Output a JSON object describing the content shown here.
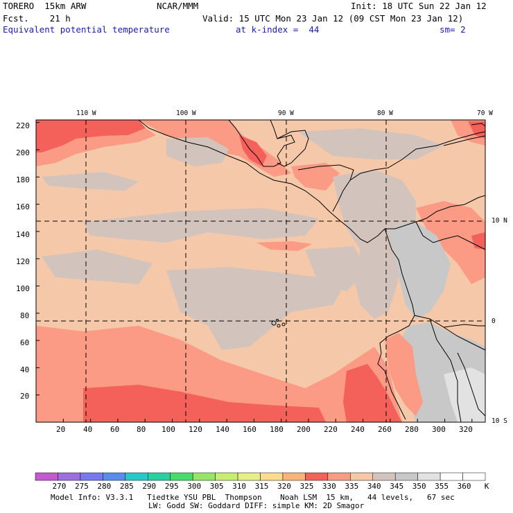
{
  "header": {
    "model_name": "TORERO  15km ARW",
    "center": "NCAR/MMM",
    "init": "Init: 18 UTC Sun 22 Jan 12",
    "fcst": "Fcst.    21 h",
    "valid": "Valid: 15 UTC Mon 23 Jan 12 (09 CST Mon 23 Jan 12)",
    "field": "Equivalent potential temperature",
    "level": "at k-index =  44",
    "smoothing": "sm= 2"
  },
  "map": {
    "top_lon_labels": [
      "110 W",
      "100 W",
      "90 W",
      "80 W",
      "70 W"
    ],
    "right_lat_labels": [
      "10 N",
      "0",
      "10 S"
    ],
    "y_axis_ticks": [
      "20",
      "40",
      "60",
      "80",
      "100",
      "120",
      "140",
      "160",
      "180",
      "200",
      "220"
    ],
    "x_axis_ticks": [
      "20",
      "40",
      "60",
      "80",
      "100",
      "120",
      "140",
      "160",
      "180",
      "200",
      "220",
      "240",
      "260",
      "280",
      "300",
      "320"
    ],
    "colors": {
      "c335": "#fb9a85",
      "c340": "#f4c8a8",
      "c345": "#d2c4bd",
      "c350": "#c8c8c8",
      "c355": "#e2e2e2",
      "c330": "#f4605a"
    }
  },
  "colorbar": {
    "unit": "K",
    "labels": [
      "270",
      "275",
      "280",
      "285",
      "290",
      "295",
      "300",
      "305",
      "310",
      "315",
      "320",
      "325",
      "330",
      "335",
      "340",
      "345",
      "350",
      "355",
      "360"
    ],
    "colors": [
      "#c35ad2",
      "#9b6ee6",
      "#7878f0",
      "#5a8cf0",
      "#28c8c8",
      "#28d2a0",
      "#46dc6e",
      "#96e664",
      "#c8ee6e",
      "#e6f082",
      "#fadc8c",
      "#fab478",
      "#f4605a",
      "#fb9a85",
      "#f4c8a8",
      "#d2c4bd",
      "#c8c8c8",
      "#e2e2e2",
      "#ffffff"
    ]
  },
  "footer": {
    "line1": "Model Info: V3.3.1   Tiedtke YSU PBL  Thompson    Noah LSM  15 km,   44 levels,   67 sec",
    "line2": "LW: Godd SW: Goddard DIFF: simple KM: 2D Smagor"
  }
}
